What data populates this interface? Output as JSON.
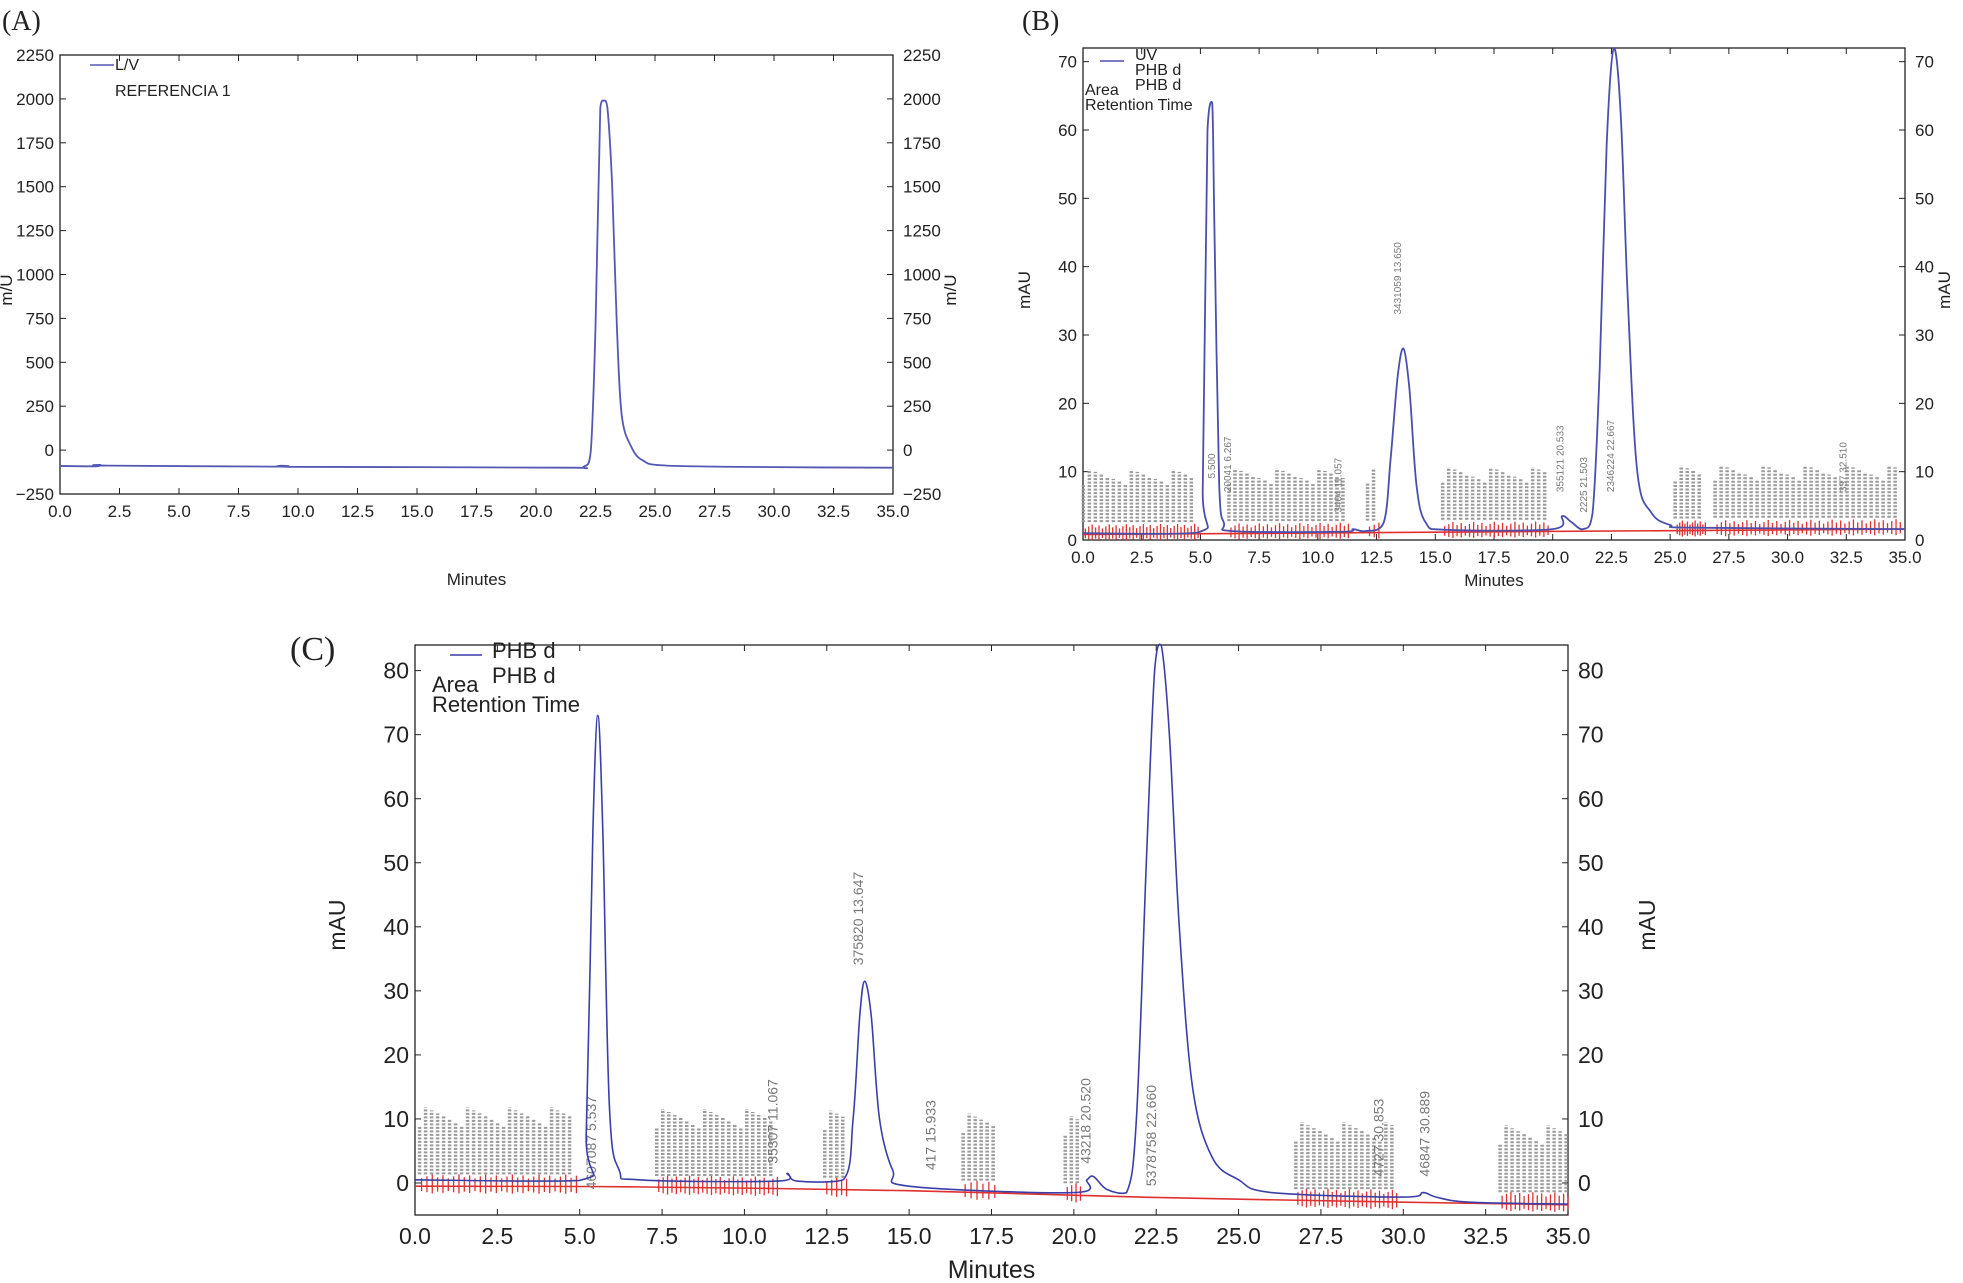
{
  "chart_data": [
    {
      "panel": "(A)",
      "type": "line",
      "xlabel": "Minutes",
      "ylabel_left": "m/U",
      "ylabel_right": "m/U",
      "xlim": [
        0,
        35
      ],
      "ylim": [
        -250,
        2250
      ],
      "xticks": [
        "0.0",
        "2.5",
        "5.0",
        "7.5",
        "10.0",
        "12.5",
        "15.0",
        "17.5",
        "20.0",
        "22.5",
        "25.0",
        "27.5",
        "30.0",
        "32.5",
        "35.0"
      ],
      "yticks": [
        "−250",
        "0",
        "250",
        "500",
        "750",
        "1000",
        "1250",
        "1500",
        "1750",
        "2000",
        "2250"
      ],
      "legend": [
        "L/V",
        "REFERENCIA 1"
      ],
      "series": [
        {
          "name": "L/V",
          "color": "#5558b3",
          "x": [
            0.0,
            1.5,
            1.7,
            2.0,
            9.0,
            9.3,
            9.6,
            15.0,
            21.5,
            22.0,
            22.3,
            22.5,
            22.7,
            22.85,
            23.0,
            23.2,
            23.4,
            23.6,
            24.0,
            24.5,
            25.5,
            30.0,
            35.0
          ],
          "y": [
            -90,
            -92,
            -84,
            -88,
            -94,
            -88,
            -95,
            -97,
            -100,
            -95,
            -10,
            700,
            1950,
            1990,
            1950,
            1500,
            700,
            200,
            20,
            -60,
            -88,
            -97,
            -100
          ]
        }
      ]
    },
    {
      "panel": "(B)",
      "type": "line",
      "xlabel": "Minutes",
      "ylabel_left": "mAU",
      "ylabel_right": "mAU",
      "xlim": [
        0,
        35
      ],
      "ylim": [
        0,
        72
      ],
      "xticks": [
        "0.0",
        "2.5",
        "5.0",
        "7.5",
        "10.0",
        "12.5",
        "15.0",
        "17.5",
        "20.0",
        "22.5",
        "25.0",
        "27.5",
        "30.0",
        "32.5",
        "35.0"
      ],
      "yticks": [
        "0",
        "10",
        "20",
        "30",
        "40",
        "50",
        "60",
        "70"
      ],
      "legend": [
        "UV",
        "PHB d",
        "PHB d",
        "Area",
        "Retention Time"
      ],
      "series": [
        {
          "name": "UV PHB d",
          "color": "#4a4fae",
          "x": [
            0,
            4.9,
            5.1,
            5.3,
            5.5,
            5.6,
            5.8,
            6.0,
            6.4,
            11.0,
            11.5,
            12.0,
            12.8,
            13.1,
            13.4,
            13.65,
            13.9,
            14.2,
            14.6,
            15.5,
            20.0,
            20.4,
            20.8,
            21.3,
            21.7,
            22.0,
            22.3,
            22.6,
            22.9,
            23.2,
            23.6,
            24.2,
            25.0,
            26.0,
            35.0
          ],
          "y": [
            1.0,
            1.1,
            8,
            60,
            64,
            45,
            8,
            2.5,
            1.3,
            1.2,
            1.6,
            1.3,
            2.5,
            12,
            24,
            28,
            22,
            8,
            2.5,
            1.5,
            1.6,
            3.5,
            2.6,
            1.6,
            4,
            25,
            58,
            72,
            62,
            35,
            10,
            4,
            2.2,
            1.8,
            1.6
          ]
        },
        {
          "name": "baseline",
          "color": "#e03030",
          "x": [
            0,
            35
          ],
          "y": [
            0.8,
            1.6
          ]
        }
      ],
      "peak_labels": [
        "5.500",
        "20041 6.267",
        "3431059 13.650",
        "355121 20.533",
        "2225 21.503",
        "2346224 22.667",
        "337 32.510",
        "3404 11.057"
      ]
    },
    {
      "panel": "(C)",
      "type": "line",
      "xlabel": "Minutes",
      "ylabel_left": "mAU",
      "ylabel_right": "mAU",
      "xlim": [
        0,
        35
      ],
      "ylim": [
        -5,
        84
      ],
      "xticks": [
        "0.0",
        "2.5",
        "5.0",
        "7.5",
        "10.0",
        "12.5",
        "15.0",
        "17.5",
        "20.0",
        "22.5",
        "25.0",
        "27.5",
        "30.0",
        "32.5",
        "35.0"
      ],
      "yticks": [
        "0",
        "10",
        "20",
        "30",
        "40",
        "50",
        "60",
        "70",
        "80"
      ],
      "legend": [
        "PHB d",
        "PHB d",
        "Area",
        "Retention Time"
      ],
      "series": [
        {
          "name": "PHB d",
          "color": "#3a3fa8",
          "x": [
            0,
            5.0,
            5.2,
            5.4,
            5.55,
            5.7,
            5.9,
            6.2,
            6.8,
            11.0,
            11.3,
            11.6,
            13.0,
            13.3,
            13.5,
            13.65,
            13.85,
            14.1,
            14.5,
            15.0,
            20.0,
            20.4,
            20.6,
            21.0,
            21.6,
            21.9,
            22.2,
            22.45,
            22.65,
            22.9,
            23.2,
            23.6,
            24.2,
            25.0,
            26.0,
            30.0,
            30.6,
            31.0,
            32.0,
            35.0
          ],
          "y": [
            0.5,
            0.4,
            8,
            55,
            73,
            55,
            12,
            2,
            0.5,
            0.3,
            1.5,
            0.3,
            0.5,
            10,
            26,
            31.5,
            26,
            10,
            2,
            -0.5,
            -1.5,
            0.5,
            1.0,
            -1.0,
            -1.5,
            10,
            50,
            80,
            84,
            70,
            40,
            15,
            4,
            0.5,
            -1.5,
            -2.2,
            -1.5,
            -2.2,
            -3.0,
            -3.3
          ]
        },
        {
          "name": "baseline",
          "color": "#e03030",
          "x": [
            0,
            6.5,
            15.0,
            22.0,
            30.0,
            35.0
          ],
          "y": [
            -0.5,
            -0.6,
            -1.2,
            -2.2,
            -3.0,
            -3.4
          ]
        }
      ],
      "peak_labels": [
        "4607087 5.537",
        "35307 11.067",
        "375820 13.647",
        "417 15.933",
        "43218 20.520",
        "5378758 22.660",
        "4727 30.853",
        "46847 30.889"
      ]
    }
  ]
}
